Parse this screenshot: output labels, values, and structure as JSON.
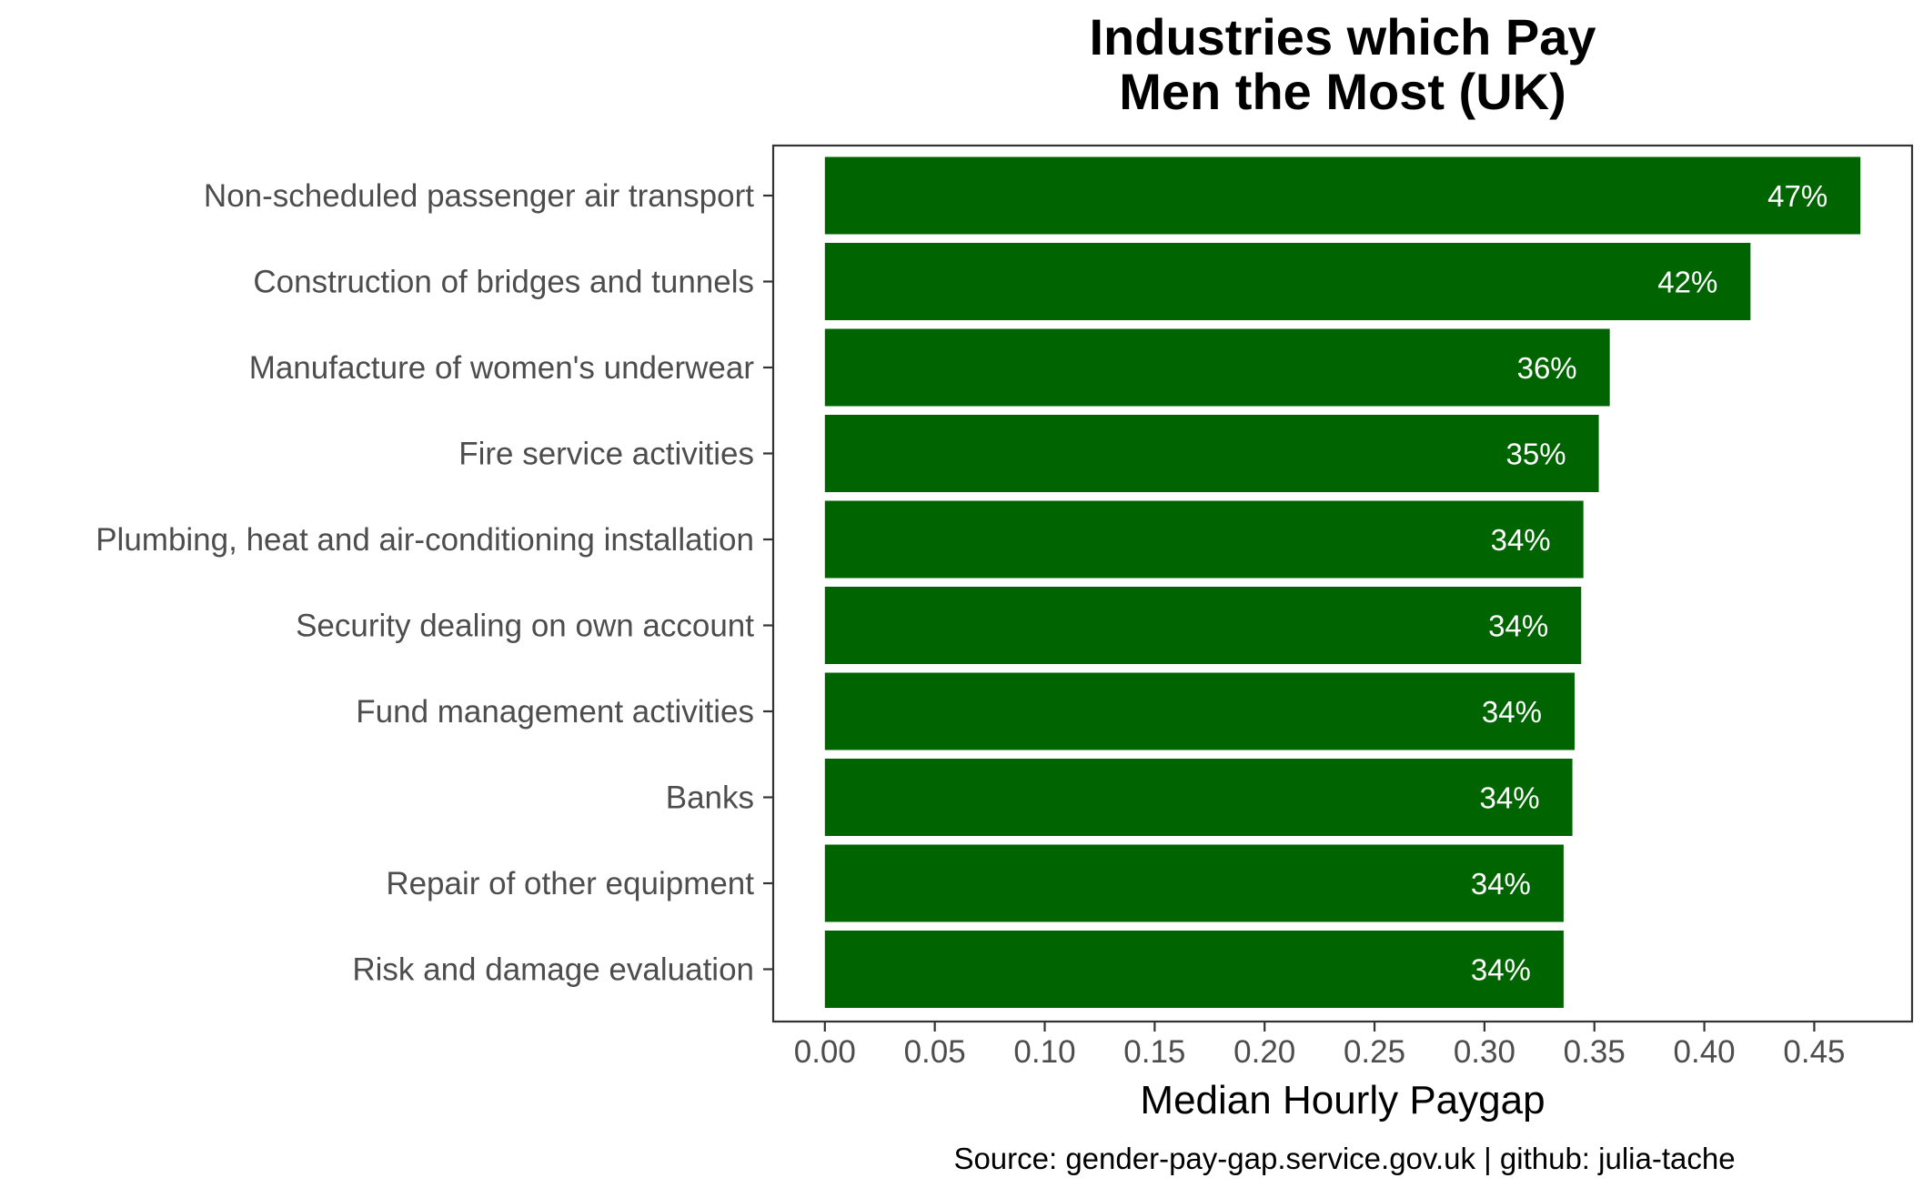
{
  "chart_data": {
    "type": "bar",
    "orientation": "horizontal",
    "title_lines": [
      "Industries which Pay",
      "Men the Most (UK)"
    ],
    "xlabel": "Median Hourly Paygap",
    "ylabel": "",
    "caption": "Source: gender-pay-gap.service.gov.uk | github: julia-tache",
    "categories": [
      "Non-scheduled passenger air transport",
      "Construction of bridges and tunnels",
      "Manufacture of women's underwear",
      "Fire service activities",
      "Plumbing, heat and air-conditioning installation",
      "Security dealing on own account",
      "Fund management activities",
      "Banks",
      "Repair of other equipment",
      "Risk and damage evaluation"
    ],
    "values": [
      0.471,
      0.421,
      0.357,
      0.352,
      0.345,
      0.344,
      0.341,
      0.34,
      0.336,
      0.336
    ],
    "data_labels": [
      "47%",
      "42%",
      "36%",
      "35%",
      "34%",
      "34%",
      "34%",
      "34%",
      "34%",
      "34%"
    ],
    "xticks": [
      0.0,
      0.05,
      0.1,
      0.15,
      0.2,
      0.25,
      0.3,
      0.35,
      0.4,
      0.45
    ],
    "xtick_labels": [
      "0.00",
      "0.05",
      "0.10",
      "0.15",
      "0.20",
      "0.25",
      "0.30",
      "0.35",
      "0.40",
      "0.45"
    ],
    "xlim": [
      -0.0235,
      0.4945
    ],
    "grid": false,
    "legend": "none",
    "bar_color": "#006400",
    "bar_label_color": "#ffffff"
  }
}
